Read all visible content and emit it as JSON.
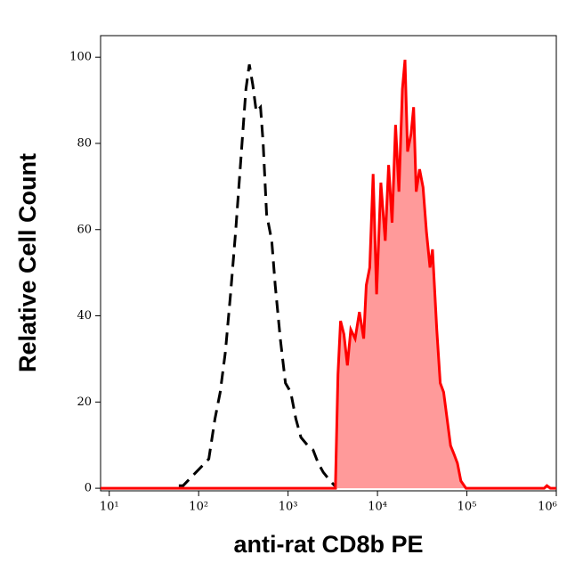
{
  "chart_data": {
    "type": "line",
    "xlabel": "anti-rat CD8b PE",
    "ylabel": "Relative Cell Count",
    "xscale": "log",
    "xlim": [
      8,
      1000000
    ],
    "ylim": [
      -0.6,
      105
    ],
    "xticks": [
      {
        "value": 10,
        "label": "10¹"
      },
      {
        "value": 100,
        "label": "10²"
      },
      {
        "value": 1000,
        "label": "10³"
      },
      {
        "value": 10000,
        "label": "10⁴"
      },
      {
        "value": 100000,
        "label": "10⁵"
      },
      {
        "value": 1000000,
        "label": "10⁶"
      }
    ],
    "yticks": [
      0,
      20,
      40,
      60,
      80,
      100
    ],
    "series": [
      {
        "color": "#000000",
        "dashed": true,
        "filled": false,
        "x": [
          60,
          67,
          84,
          105,
          130,
          152,
          174,
          199,
          227,
          259,
          296,
          338,
          369,
          403,
          441,
          492,
          526,
          575,
          657,
          718,
          819,
          935,
          1069,
          1222,
          1394,
          1663,
          1901,
          2173,
          2477,
          2958,
          3532
        ],
        "values": [
          0.6,
          0.6,
          2.7,
          4.8,
          6.8,
          16.1,
          22.3,
          31.6,
          45,
          59.5,
          76,
          92.6,
          98.3,
          93.6,
          87.4,
          88.4,
          80.2,
          63.6,
          57.4,
          47.1,
          34.7,
          24.4,
          22.3,
          16.1,
          11.8,
          9.9,
          8.9,
          5.8,
          3.7,
          1.7,
          0
        ]
      },
      {
        "color": "#ff0000",
        "fill_color": "#ff9a9a",
        "dashed": false,
        "filled": true,
        "x": [
          8,
          3000,
          3381,
          3614,
          3864,
          4217,
          4605,
          5032,
          5623,
          6281,
          7017,
          7499,
          8185,
          8947,
          9772,
          10914,
          12215,
          13335,
          14555,
          15922,
          17378,
          19011,
          20324,
          21727,
          23714,
          25351,
          27102,
          29580,
          32359,
          35318,
          38637,
          41210,
          46026,
          50350,
          54954,
          60117,
          65614,
          71779,
          78343,
          85705,
          97724,
          217270,
          732825,
          783430,
          857038,
          1000000
        ],
        "values": [
          0,
          0,
          0,
          26.4,
          38.8,
          35.7,
          28.5,
          36.8,
          34.7,
          40.9,
          34.7,
          47.1,
          51.2,
          72.9,
          45,
          70.9,
          57.4,
          75,
          61.6,
          84.3,
          68.8,
          92.6,
          99.4,
          78.1,
          82.2,
          88.4,
          68.8,
          74,
          69.8,
          59.5,
          51.2,
          55.4,
          36.8,
          24.4,
          22.3,
          16.1,
          9.9,
          7.9,
          5.8,
          1.7,
          0,
          0,
          0,
          0.6,
          0,
          0
        ]
      }
    ]
  }
}
